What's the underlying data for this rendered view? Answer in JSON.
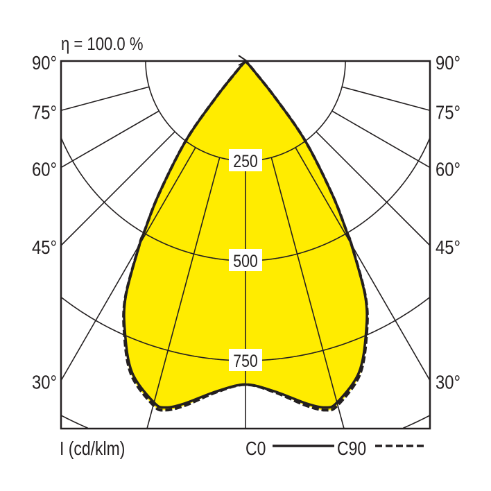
{
  "chart_data": {
    "type": "polar",
    "title": "η = 100.0 %",
    "unit_label": "I (cd/klm)",
    "angle_labels_left": [
      "90°",
      "75°",
      "60°",
      "45°",
      "30°"
    ],
    "angle_labels_right": [
      "90°",
      "75°",
      "60°",
      "45°",
      "30°"
    ],
    "radial_ticks": [
      250,
      500,
      750,
      1000
    ],
    "radial_tick_labels": [
      "250",
      "500",
      "750"
    ],
    "spoke_angles": [
      0,
      15,
      30,
      45,
      60,
      75,
      90
    ],
    "symmetric": true,
    "series": [
      {
        "name": "C0",
        "style": "solid",
        "angles": [
          0,
          5,
          10,
          13,
          15,
          20,
          24,
          27,
          30,
          30.6,
          33,
          36.8,
          39,
          41,
          42
        ],
        "values": [
          810,
          830,
          870,
          890,
          885,
          830,
          742,
          660,
          530,
          500,
          400,
          250,
          120,
          30,
          0
        ]
      },
      {
        "name": "C90",
        "style": "dashed",
        "angles": [
          0,
          5,
          10,
          13,
          15,
          20,
          24,
          27,
          30,
          30.6,
          33,
          36.8,
          39,
          41,
          42
        ],
        "values": [
          810,
          832,
          876,
          897,
          892,
          836,
          746,
          662,
          531,
          500,
          400,
          250,
          120,
          30,
          0
        ]
      }
    ],
    "colors": {
      "fill": "#ffec00",
      "line": "#231f20"
    }
  }
}
